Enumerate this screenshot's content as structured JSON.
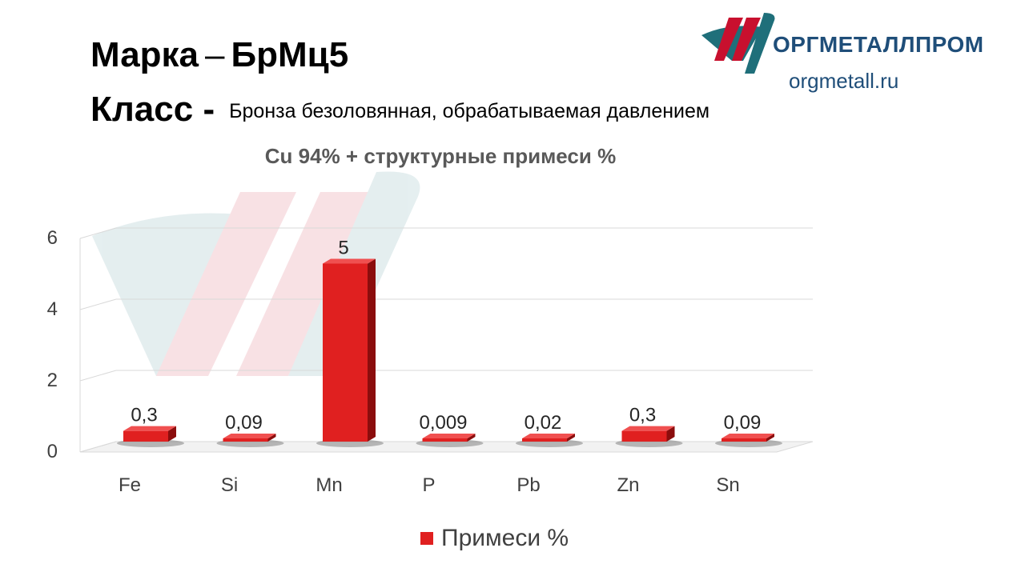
{
  "header": {
    "grade_label": "Марка",
    "grade_dash": "–",
    "grade_value": "БрМц5",
    "class_label": "Класс -",
    "class_value": "Бронза безоловянная, обрабатываемая давлением"
  },
  "logo": {
    "name": "ОРГМЕТАЛЛПРОМ",
    "url": "orgmetall.ru",
    "colors": {
      "red": "#c8102e",
      "teal": "#1f6f7a",
      "text": "#1f4e79"
    }
  },
  "chart_data": {
    "type": "bar",
    "title": "Cu 94% + структурные примеси %",
    "categories": [
      "Fe",
      "Si",
      "Mn",
      "P",
      "Pb",
      "Zn",
      "Sn"
    ],
    "series": [
      {
        "name": "Примеси %",
        "values": [
          0.3,
          0.09,
          5,
          0.009,
          0.02,
          0.3,
          0.09
        ],
        "labels": [
          "0,3",
          "0,09",
          "5",
          "0,009",
          "0,02",
          "0,3",
          "0,09"
        ],
        "color": "#e02020"
      }
    ],
    "yticks": [
      "0",
      "2",
      "4",
      "6"
    ],
    "ylim": [
      0,
      6
    ],
    "grid": true,
    "legend": "bottom",
    "style": "3d"
  }
}
